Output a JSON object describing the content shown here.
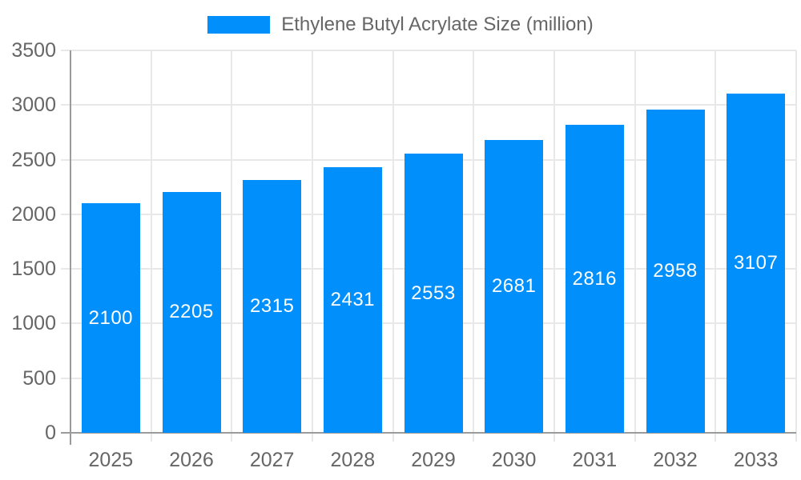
{
  "chart_data": {
    "type": "bar",
    "title": "",
    "legend": "Ethylene Butyl Acrylate Size (million)",
    "legend_position": "top-center",
    "categories": [
      "2025",
      "2026",
      "2027",
      "2028",
      "2029",
      "2030",
      "2031",
      "2032",
      "2033"
    ],
    "values": [
      2100,
      2205,
      2315,
      2431,
      2553,
      2681,
      2816,
      2958,
      3107
    ],
    "xlabel": "",
    "ylabel": "",
    "ylim": [
      0,
      3500
    ],
    "ytick_step": 500,
    "yticks": [
      0,
      500,
      1000,
      1500,
      2000,
      2500,
      3000,
      3500
    ],
    "grid": true,
    "bar_color": "#008FFB",
    "bar_label_color": "#ffffff",
    "grid_color": "#e8e8e8",
    "axis_color": "#9b9b9b",
    "tick_label_color": "#666666",
    "background_color": "#ffffff"
  }
}
